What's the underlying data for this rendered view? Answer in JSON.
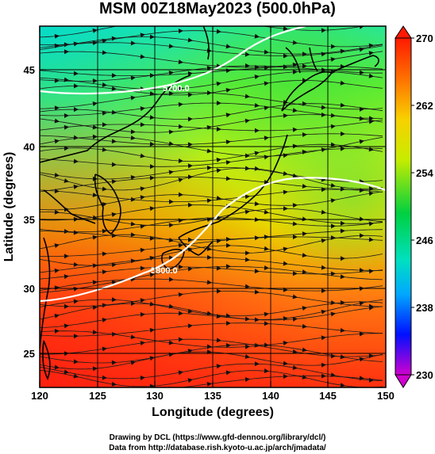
{
  "title": "MSM 00Z18May2023 (500.0hPa)",
  "x_axis": {
    "label": "Longitude (degrees)",
    "ticks": [
      "120",
      "125",
      "130",
      "135",
      "140",
      "145",
      "150"
    ],
    "range": [
      120,
      150
    ]
  },
  "y_axis": {
    "label": "Latitude (degrees)",
    "ticks": [
      "25",
      "30",
      "35",
      "40",
      "45"
    ],
    "range": [
      22.4,
      47.6
    ]
  },
  "colorbar": {
    "ticks": [
      "230",
      "238",
      "246",
      "254",
      "262",
      "270"
    ],
    "range": [
      230,
      270
    ],
    "colors": [
      "#d000d0",
      "#0000ff",
      "#00c8ff",
      "#00e060",
      "#e8ee00",
      "#ff1a00"
    ]
  },
  "contours": [
    {
      "label": "5700.0"
    },
    {
      "label": "5800.0"
    }
  ],
  "credits": [
    "Drawing by DCL (https://www.gfd-dennou.org/library/dcl/)",
    "Data from http://database.rish.kyoto-u.ac.jp/arch/jmadata/"
  ],
  "colors": {
    "cold": "#19e8b0",
    "mid": "#d8ec1c",
    "warm": "#ff3a14",
    "contour": "#ffffff"
  }
}
